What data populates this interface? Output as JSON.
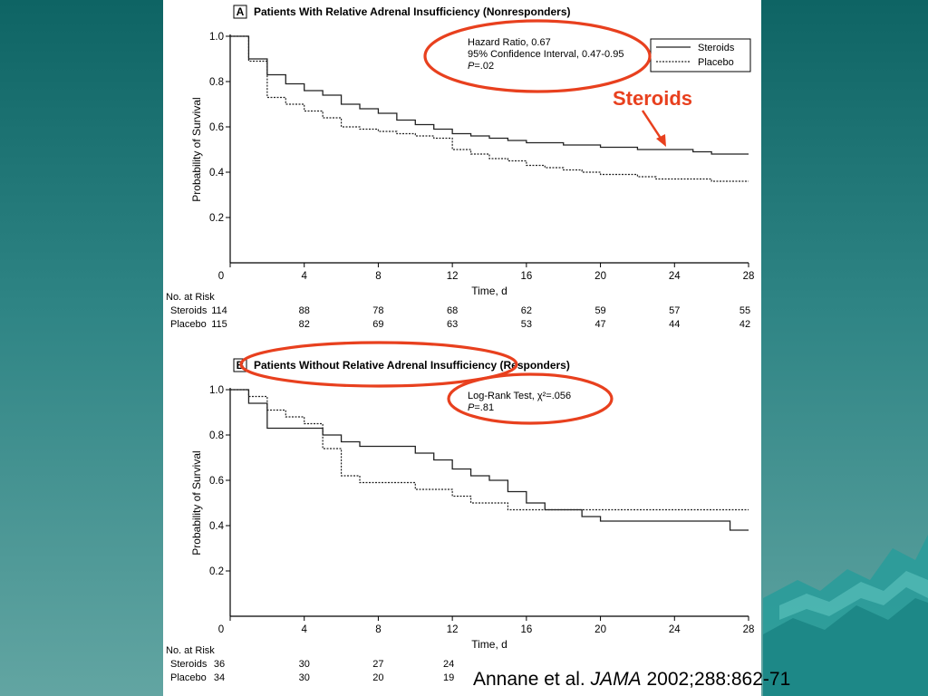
{
  "colors": {
    "accent": "#e8401e",
    "background_top": "#0e6464",
    "background_bottom": "#62a5a2",
    "curve": "#222222"
  },
  "callout": {
    "label": "Steroids"
  },
  "citation": {
    "authors": "Annane et al. ",
    "journal": "JAMA",
    "details": " 2002;288:862-71"
  },
  "chart_data": [
    {
      "type": "line",
      "panel_letter": "A",
      "title": "Patients With Relative Adrenal Insufficiency (Nonresponders)",
      "xlabel": "Time, d",
      "ylabel": "Probability of Survival",
      "xlim": [
        0,
        28
      ],
      "ylim": [
        0,
        1.0
      ],
      "xticks": [
        0,
        4,
        8,
        12,
        16,
        20,
        24,
        28
      ],
      "yticks": [
        0.2,
        0.4,
        0.6,
        0.8,
        1.0
      ],
      "step": true,
      "grid": false,
      "legend_position": "top-right",
      "annotation": [
        "Hazard Ratio, 0.67",
        "95% Confidence Interval, 0.47-0.95",
        "=.02"
      ],
      "annotation_p_symbol": "P",
      "series": [
        {
          "name": "Steroids",
          "style": "solid",
          "x": [
            0,
            1,
            2,
            3,
            4,
            5,
            6,
            7,
            8,
            9,
            10,
            11,
            12,
            13,
            14,
            15,
            16,
            17,
            18,
            19,
            20,
            21,
            22,
            23,
            24,
            25,
            26,
            27,
            28
          ],
          "y": [
            1.0,
            0.9,
            0.83,
            0.79,
            0.76,
            0.74,
            0.7,
            0.68,
            0.66,
            0.63,
            0.61,
            0.59,
            0.57,
            0.56,
            0.55,
            0.54,
            0.53,
            0.53,
            0.52,
            0.52,
            0.51,
            0.51,
            0.5,
            0.5,
            0.5,
            0.49,
            0.48,
            0.48,
            0.48
          ]
        },
        {
          "name": "Placebo",
          "style": "dashed",
          "x": [
            0,
            1,
            2,
            3,
            4,
            5,
            6,
            7,
            8,
            9,
            10,
            11,
            12,
            13,
            14,
            15,
            16,
            17,
            18,
            19,
            20,
            21,
            22,
            23,
            24,
            25,
            26,
            27,
            28
          ],
          "y": [
            1.0,
            0.89,
            0.73,
            0.7,
            0.67,
            0.64,
            0.6,
            0.59,
            0.58,
            0.57,
            0.56,
            0.55,
            0.5,
            0.48,
            0.46,
            0.45,
            0.43,
            0.42,
            0.41,
            0.4,
            0.39,
            0.39,
            0.38,
            0.37,
            0.37,
            0.37,
            0.36,
            0.36,
            0.36
          ]
        }
      ],
      "risk_table": {
        "header": "No. at Risk",
        "rows": [
          {
            "label": "Steroids",
            "values": [
              114,
              88,
              78,
              68,
              62,
              59,
              57,
              55
            ]
          },
          {
            "label": "Placebo",
            "values": [
              115,
              82,
              69,
              63,
              53,
              47,
              44,
              42
            ]
          }
        ]
      }
    },
    {
      "type": "line",
      "panel_letter": "B",
      "title": "Patients Without Relative Adrenal Insufficiency (Responders)",
      "xlabel": "Time, d",
      "ylabel": "Probability of Survival",
      "xlim": [
        0,
        28
      ],
      "ylim": [
        0,
        1.0
      ],
      "xticks": [
        0,
        4,
        8,
        12,
        16,
        20,
        24,
        28
      ],
      "yticks": [
        0.2,
        0.4,
        0.6,
        0.8,
        1.0
      ],
      "step": true,
      "grid": false,
      "annotation": [
        "Log-Rank Test, χ²=.056",
        "=.81"
      ],
      "annotation_p_symbol": "P",
      "series": [
        {
          "name": "Steroids",
          "style": "solid",
          "x": [
            0,
            1,
            2,
            3,
            4,
            5,
            6,
            7,
            8,
            9,
            10,
            11,
            12,
            13,
            14,
            15,
            16,
            17,
            18,
            19,
            20,
            21,
            22,
            23,
            24,
            25,
            26,
            27,
            28
          ],
          "y": [
            1.0,
            0.94,
            0.83,
            0.83,
            0.83,
            0.8,
            0.77,
            0.75,
            0.75,
            0.75,
            0.72,
            0.69,
            0.65,
            0.62,
            0.6,
            0.55,
            0.5,
            0.47,
            0.47,
            0.44,
            0.42,
            0.42,
            0.42,
            0.42,
            0.42,
            0.42,
            0.42,
            0.38,
            0.38
          ]
        },
        {
          "name": "Placebo",
          "style": "dashed",
          "x": [
            0,
            1,
            2,
            3,
            4,
            5,
            6,
            7,
            8,
            9,
            10,
            11,
            12,
            13,
            14,
            15,
            16,
            17,
            18,
            19,
            20,
            21,
            22,
            23,
            24,
            25,
            26,
            27,
            28
          ],
          "y": [
            1.0,
            0.97,
            0.91,
            0.88,
            0.85,
            0.74,
            0.62,
            0.59,
            0.59,
            0.59,
            0.56,
            0.56,
            0.53,
            0.5,
            0.5,
            0.47,
            0.47,
            0.47,
            0.47,
            0.47,
            0.47,
            0.47,
            0.47,
            0.47,
            0.47,
            0.47,
            0.47,
            0.47,
            0.47
          ]
        }
      ],
      "risk_table": {
        "header": "No. at Risk",
        "rows": [
          {
            "label": "Steroids",
            "values": [
              36,
              30,
              27,
              24
            ]
          },
          {
            "label": "Placebo",
            "values": [
              34,
              30,
              20,
              19
            ]
          }
        ]
      }
    }
  ]
}
